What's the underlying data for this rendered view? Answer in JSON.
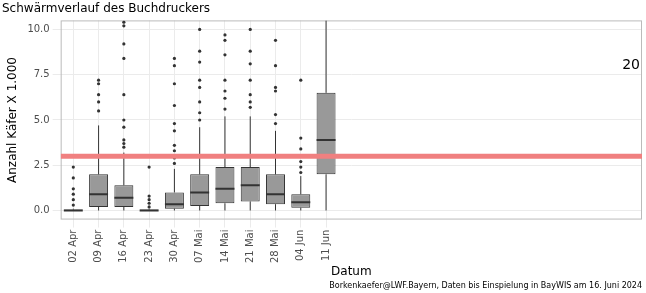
{
  "chart_data": {
    "type": "boxplot",
    "title": "Schwärmverlauf des Buchdruckers",
    "x_label": "Datum",
    "y_label": "Anzahl Käfer X 1.000",
    "caption": "Borkenkaefer@LWF.Bayern, Daten bis Einspielung in BayWIS am 16. Juni 2024",
    "categories": [
      "02 Apr",
      "09 Apr",
      "16 Apr",
      "23 Apr",
      "30 Apr",
      "07 Mai",
      "14 Mai",
      "21 Mai",
      "28 Mai",
      "04 Jun",
      "11 Jun",
      null,
      null,
      null,
      null,
      null,
      null,
      null,
      null,
      null,
      null,
      null,
      null
    ],
    "boxes": [
      {
        "min": 0,
        "q1": 0,
        "median": 0,
        "q3": 0.05,
        "max": 0.1,
        "outliers": [
          0.3,
          0.6,
          0.9,
          1.2,
          1.8,
          2.4
        ]
      },
      {
        "min": 0,
        "q1": 0.2,
        "median": 0.9,
        "q3": 2.0,
        "max": 4.7,
        "outliers": [
          5.5,
          6.0,
          6.4,
          7.0,
          7.2
        ]
      },
      {
        "min": 0,
        "q1": 0.2,
        "median": 0.7,
        "q3": 1.4,
        "max": 3.2,
        "outliers": [
          3.5,
          3.7,
          3.9,
          4.6,
          5.0,
          6.4,
          8.4,
          9.2,
          10.2,
          10.4
        ]
      },
      {
        "min": 0,
        "q1": 0,
        "median": 0,
        "q3": 0.05,
        "max": 0.1,
        "outliers": [
          0.2,
          0.4,
          0.6,
          0.8,
          2.4
        ]
      },
      {
        "min": 0,
        "q1": 0.1,
        "median": 0.35,
        "q3": 1.0,
        "max": 2.3,
        "outliers": [
          2.6,
          2.9,
          3.3,
          3.6,
          4.4,
          4.8,
          5.8,
          7.0,
          8.0,
          8.4
        ]
      },
      {
        "min": 0,
        "q1": 0.25,
        "median": 1.0,
        "q3": 2.0,
        "max": 4.6,
        "outliers": [
          5.0,
          5.4,
          6.0,
          6.8,
          7.2,
          8.2,
          8.8,
          10.0
        ]
      },
      {
        "min": 0,
        "q1": 0.4,
        "median": 1.2,
        "q3": 2.4,
        "max": 5.2,
        "outliers": [
          5.6,
          6.2,
          6.6,
          7.2,
          8.6,
          9.4,
          9.7
        ]
      },
      {
        "min": 0,
        "q1": 0.5,
        "median": 1.4,
        "q3": 2.4,
        "max": 5.2,
        "outliers": [
          5.7,
          6.0,
          6.4,
          7.2,
          8.1,
          8.8,
          10.0
        ]
      },
      {
        "min": 0,
        "q1": 0.35,
        "median": 0.9,
        "q3": 2.0,
        "max": 4.4,
        "outliers": [
          4.8,
          5.3,
          6.6,
          6.8,
          8.0,
          9.4
        ]
      },
      {
        "min": 0,
        "q1": 0.15,
        "median": 0.45,
        "q3": 0.9,
        "max": 1.9,
        "outliers": [
          2.1,
          2.4,
          2.7,
          3.0,
          3.4,
          4.0,
          7.2
        ]
      },
      {
        "min": 0,
        "q1": 2.0,
        "median": 3.9,
        "q3": 6.5,
        "max": 10.5,
        "outliers": []
      },
      null,
      null,
      null,
      null,
      null,
      null,
      null,
      null,
      null,
      null,
      null,
      null
    ],
    "color": "#999999",
    "reference_line": {
      "value": 3.0,
      "color": "#f08080"
    },
    "annotations": [
      {
        "text": "20",
        "y": 8
      }
    ],
    "ylim": [
      -0.5,
      10.5
    ],
    "yticks": [
      {
        "value": 0,
        "label": "0.0"
      },
      {
        "value": 2.5,
        "label": "2.5"
      },
      {
        "value": 5,
        "label": "5.0"
      },
      {
        "value": 7.5,
        "label": "7.5"
      },
      {
        "value": 10,
        "label": "10.0"
      }
    ],
    "grid": true
  }
}
